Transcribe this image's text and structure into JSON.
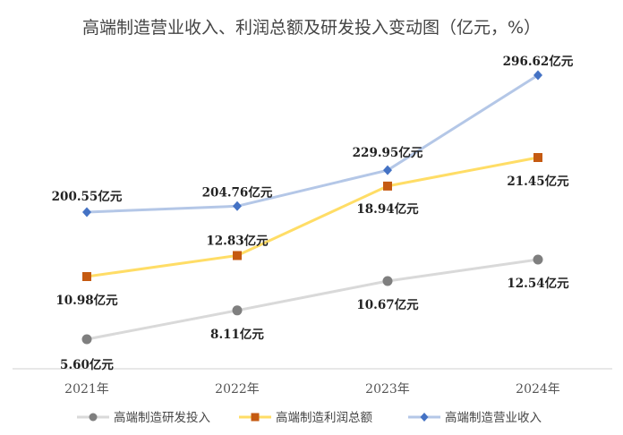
{
  "chart_data": {
    "type": "line",
    "title": "高端制造营业收入、利润总额及研发投入变动图（亿元，%）",
    "categories": [
      "2021年",
      "2022年",
      "2023年",
      "2024年"
    ],
    "series": [
      {
        "name": "高端制造研发投入",
        "values": [
          5.6,
          8.11,
          10.67,
          12.54
        ],
        "labels": [
          "5.60亿元",
          "8.11亿元",
          "10.67亿元",
          "12.54亿元"
        ],
        "color": "#d9d9d9",
        "marker": "circle",
        "marker_color": "#7f7f7f"
      },
      {
        "name": "高端制造利润总额",
        "values": [
          10.98,
          12.83,
          18.94,
          21.45
        ],
        "labels": [
          "10.98亿元",
          "12.83亿元",
          "18.94亿元",
          "21.45亿元"
        ],
        "color": "#ffdd66",
        "marker": "square",
        "marker_color": "#c55a11"
      },
      {
        "name": "高端制造营业收入",
        "values": [
          200.55,
          204.76,
          229.95,
          296.62
        ],
        "labels": [
          "200.55亿元",
          "204.76亿元",
          "229.95亿元",
          "296.62亿元"
        ],
        "color": "#b4c7e7",
        "marker": "diamond",
        "marker_color": "#4472c4"
      }
    ],
    "legend_position": "bottom",
    "grid": false
  }
}
